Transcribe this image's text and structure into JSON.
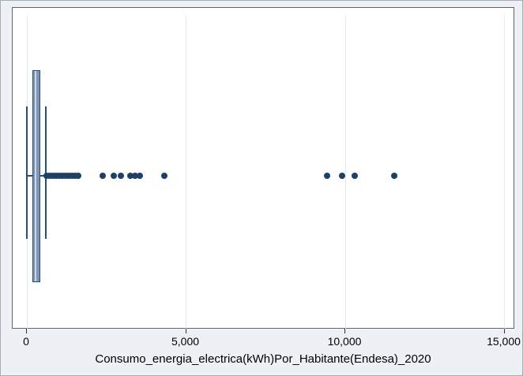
{
  "window": {
    "background_color": "#edf1f5",
    "frame_color": "#a6adb3"
  },
  "chart_data": {
    "type": "box",
    "orientation": "horizontal",
    "title": "",
    "xlabel": "Consumo_energia_electrica(kWh)Por_Habitante(Endesa)_2020",
    "ylabel": "",
    "xlim": [
      -450,
      15340
    ],
    "xticks": [
      0,
      5000,
      10000,
      15000
    ],
    "xtick_labels": [
      "0",
      "5,000",
      "10,000",
      "15,000"
    ],
    "grid": true,
    "legend": "none",
    "box": {
      "q1": 175,
      "median": 285,
      "q3": 410,
      "whisker_low": 0,
      "whisker_high": 595
    },
    "outliers": [
      620,
      720,
      820,
      920,
      1020,
      1120,
      1220,
      1320,
      1410,
      1510,
      1610,
      2390,
      2730,
      2950,
      3260,
      3400,
      3540,
      4320,
      9430,
      9910,
      10300,
      11540
    ],
    "colors": {
      "marker": "#1f4066",
      "box_border": "#2c4d72",
      "box_fill": "#7e96b3",
      "median_line": "#ccd6e1",
      "whisker": "#2c4d72",
      "gridline": "#e3ecf2",
      "plot_border": "#606468",
      "axis_text": "#000000"
    }
  }
}
